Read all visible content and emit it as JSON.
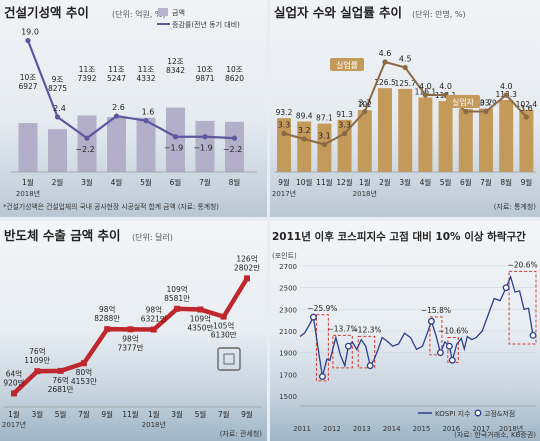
{
  "charts": [
    {
      "type": "bar",
      "title": "건설기성액 추이",
      "unit_note": "(단위: 억원, %)",
      "legend": [
        "금액",
        "증감률(전년 동기 대비)"
      ],
      "categories": [
        "1월",
        "2월",
        "3월",
        "4월",
        "5월",
        "6월",
        "7월",
        "8월"
      ],
      "year_labels": [
        "2018년"
      ],
      "bar_labels": [
        "10조\n6927",
        "9조\n8275",
        "11조\n7392",
        "11조\n5247",
        "11조\n4332",
        "12조\n8342",
        "10조\n9871",
        "10조\n8620"
      ],
      "line_labels": [
        "19.0",
        "2.4",
        "−2.2",
        "2.6",
        "1.6",
        "−1.9",
        "−1.9",
        "−2.2"
      ],
      "source": "*건설기성액은 건설업체의 국내 공사현장 시공실적 합계 금액   (자료: 통계청)"
    },
    {
      "type": "bar",
      "title": "실업자 수와 실업률 추이",
      "unit_note": "(단위: 만명, %)",
      "categories": [
        "9월",
        "10월",
        "11월",
        "12월",
        "1월",
        "2월",
        "3월",
        "4월",
        "5월",
        "6월",
        "7월",
        "8월",
        "9월"
      ],
      "year_labels": [
        "2017년",
        "2018년"
      ],
      "series_labels": [
        "실업률",
        "실업자"
      ],
      "bar_labels": [
        "93.2",
        "89.4",
        "87.1",
        "91.3",
        "102",
        "126.5",
        "125.7",
        "116.1",
        "112.1",
        "103.4",
        "103.9",
        "113.3",
        "102.4"
      ],
      "line_labels": [
        "3.3",
        "3.2",
        "3.1",
        "3.3",
        "3.7",
        "4.6",
        "4.5",
        "4.0",
        "4.0",
        "3.7",
        "3.7",
        "4.0",
        "3.6"
      ],
      "source": "(자료: 통계청)"
    },
    {
      "type": "line",
      "title": "반도체 수출 금액 추이",
      "unit_note": "(단위: 달러)",
      "categories": [
        "1월",
        "3월",
        "5월",
        "7월",
        "9월",
        "11월",
        "1월",
        "3월",
        "5월",
        "7월",
        "9월"
      ],
      "year_labels": [
        "2017년",
        "2018년"
      ],
      "point_labels": [
        "64억\n920만",
        "76억\n1109만",
        "76억\n2681만",
        "80억\n4153만",
        "98억\n8288만",
        "98억\n7377만",
        "98억\n6321만",
        "109억\n8581만",
        "109억\n4350만",
        "105억\n6130만",
        "126억\n2802만"
      ],
      "source": "(자료: 관세청)"
    },
    {
      "type": "line",
      "title": "2011년 이후 코스피지수 고점 대비 10% 이상 하락구간",
      "unit_note": "(포인트)",
      "ylim": [
        1500,
        2700
      ],
      "y_ticks": [
        "2700",
        "2500",
        "2300",
        "2100",
        "1900",
        "1700",
        "1500"
      ],
      "x_ticks": [
        "2011",
        "2012",
        "2013",
        "2014",
        "2015",
        "2016",
        "2017",
        "2018년"
      ],
      "drawdowns": [
        "−25.9%",
        "−13.7%",
        "−12.3%",
        "−15.8%",
        "−10.6%",
        "−20.6%"
      ],
      "legend": [
        "KOSPI 지수",
        "고점&저점"
      ],
      "source": "(자료: 한국거래소, KB증권)"
    }
  ],
  "chart_data": [
    {
      "type": "bar",
      "title": "건설기성액 추이",
      "categories": [
        "1월",
        "2월",
        "3월",
        "4월",
        "5월",
        "6월",
        "7월",
        "8월"
      ],
      "series": [
        {
          "name": "금액",
          "values": [
            106927,
            98275,
            117392,
            115247,
            114332,
            128342,
            109871,
            108620
          ]
        },
        {
          "name": "증감률(전년 동기 대비)",
          "values": [
            19.0,
            2.4,
            -2.2,
            2.6,
            1.6,
            -1.9,
            -1.9,
            -2.2
          ]
        }
      ],
      "xlabel": "",
      "ylabel": ""
    },
    {
      "type": "bar",
      "title": "실업자 수와 실업률 추이",
      "categories": [
        "9월",
        "10월",
        "11월",
        "12월",
        "1월",
        "2월",
        "3월",
        "4월",
        "5월",
        "6월",
        "7월",
        "8월",
        "9월"
      ],
      "series": [
        {
          "name": "실업자",
          "values": [
            93.2,
            89.4,
            87.1,
            91.3,
            102,
            126.5,
            125.7,
            116.1,
            112.1,
            103.4,
            103.9,
            113.3,
            102.4
          ]
        },
        {
          "name": "실업률",
          "values": [
            3.3,
            3.2,
            3.1,
            3.3,
            3.7,
            4.6,
            4.5,
            4.0,
            4.0,
            3.7,
            3.7,
            4.0,
            3.6
          ]
        }
      ],
      "xlabel": "",
      "ylabel": ""
    },
    {
      "type": "line",
      "title": "반도체 수출 금액 추이",
      "categories": [
        "1월",
        "3월",
        "5월",
        "7월",
        "9월",
        "11월",
        "1월",
        "3월",
        "5월",
        "7월",
        "9월"
      ],
      "values": [
        6409.2,
        7611.09,
        7626.81,
        8041.53,
        9882.88,
        9873.77,
        9863.21,
        10985.81,
        10943.5,
        10561.3,
        12628.02
      ],
      "xlabel": "",
      "ylabel": ""
    },
    {
      "type": "line",
      "title": "2011년 이후 코스피지수 고점 대비 10% 이상 하락구간",
      "ylim": [
        1500,
        2700
      ],
      "x": [
        2011.0,
        2011.15,
        2011.3,
        2011.45,
        2011.6,
        2011.75,
        2011.9,
        2012.0,
        2012.2,
        2012.35,
        2012.5,
        2012.62,
        2012.75,
        2012.9,
        2013.05,
        2013.2,
        2013.35,
        2013.47,
        2013.6,
        2013.75,
        2013.9,
        2014.1,
        2014.3,
        2014.5,
        2014.7,
        2014.9,
        2015.1,
        2015.3,
        2015.4,
        2015.55,
        2015.7,
        2015.85,
        2016.0,
        2016.1,
        2016.25,
        2016.4,
        2016.5,
        2016.6,
        2016.75,
        2016.9,
        2017.1,
        2017.3,
        2017.5,
        2017.7,
        2017.9,
        2018.05,
        2018.2,
        2018.35,
        2018.5,
        2018.65,
        2018.8
      ],
      "values": [
        2050,
        2080,
        2150,
        2228,
        1950,
        1680,
        1840,
        1830,
        2040,
        1880,
        1780,
        1960,
        2000,
        1930,
        2020,
        1960,
        1780,
        1830,
        1920,
        2040,
        2010,
        1960,
        1980,
        2080,
        2040,
        1930,
        1960,
        2110,
        2190,
        2060,
        1900,
        2000,
        1960,
        1830,
        1980,
        2030,
        1935,
        2050,
        2020,
        2040,
        2100,
        2250,
        2400,
        2380,
        2500,
        2600,
        2460,
        2470,
        2300,
        2310,
        2060
      ],
      "xlabel": "",
      "ylabel": "포인트"
    }
  ]
}
